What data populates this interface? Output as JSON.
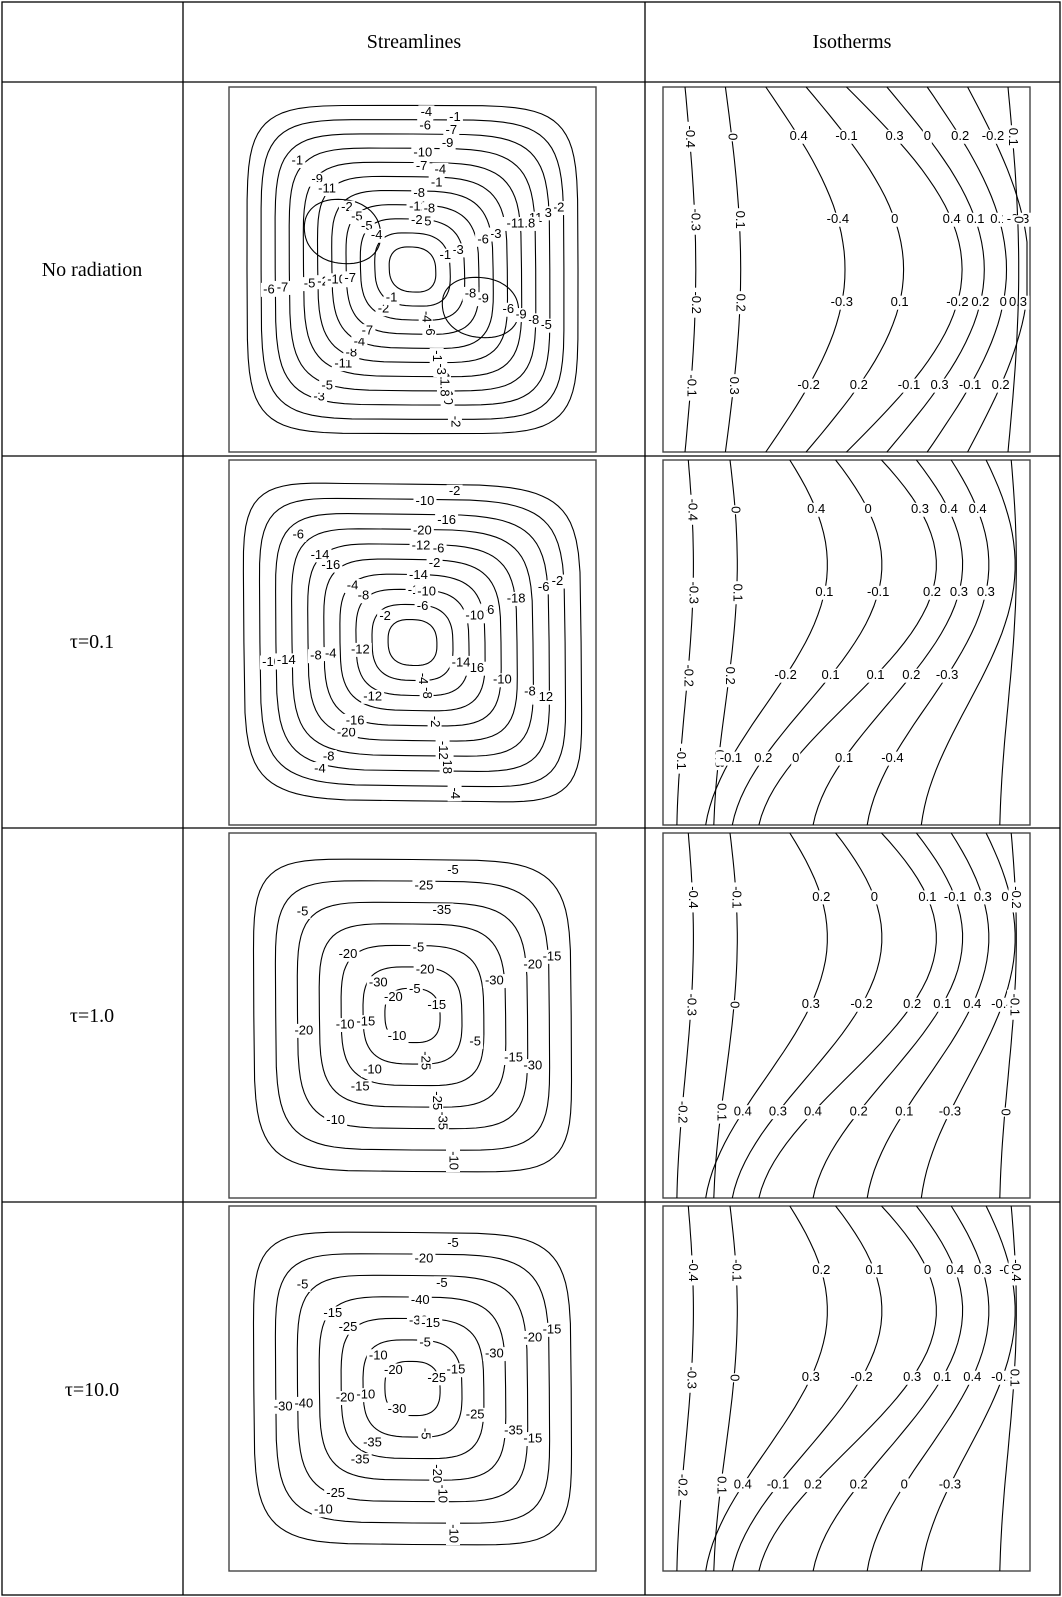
{
  "table": {
    "headers": [
      "",
      "Streamlines",
      "Isotherms"
    ],
    "rows": [
      {
        "label": "No radiation",
        "streamlines": {
          "contour_labels": [
            "-1",
            "-2",
            "-1",
            "-2",
            "-3",
            "-4",
            "-3",
            "-5",
            "-6",
            "-5",
            "-6",
            "-7",
            "-8",
            "-7",
            "-9",
            "-10",
            "-9",
            "-11",
            "-11.8",
            "-11",
            "-11.8",
            "-11",
            "-10",
            "-9",
            "-8",
            "-7",
            "-6",
            "-5",
            "-4",
            "-3",
            "-2",
            "-1",
            "-1",
            "-2",
            "-3",
            "-4",
            "-5",
            "-6",
            "-7",
            "-8",
            "-9",
            "-10",
            "-11",
            "-8",
            "-7",
            "-8",
            "-6",
            "-5",
            "-5",
            "-4",
            "-4",
            "-3",
            "-2",
            "-2",
            "-1",
            "-1"
          ],
          "min_label": "-11.8"
        },
        "isotherms": {
          "contour_labels": [
            "-0.4",
            "-0.3",
            "-0.2",
            "-0.1",
            "0",
            "0.1",
            "0.2",
            "0.3",
            "0.4",
            "-0.4",
            "-0.3",
            "-0.2",
            "-0.1",
            "0",
            "0.1",
            "0.2",
            "0.3",
            "0.4",
            "-0.2",
            "-0.1",
            "0",
            "0.1",
            "0.2",
            "0.3",
            "0.2",
            "0.1",
            "0",
            "-0.1",
            "-0.2",
            "-0.3",
            "0.3",
            "0.2",
            "0.1",
            "0"
          ],
          "range": [
            -0.4,
            0.4
          ]
        }
      },
      {
        "label": "τ=0.1",
        "streamlines": {
          "contour_labels": [
            "-2",
            "-4",
            "-6",
            "-2",
            "-4",
            "-6",
            "-8",
            "-10",
            "-12",
            "-10",
            "-8",
            "-14",
            "-16",
            "-18",
            "-14",
            "-12",
            "-16",
            "-18",
            "-20",
            "-20",
            "-16",
            "-12",
            "-10",
            "-8",
            "-6",
            "-4",
            "-2",
            "-2",
            "-4",
            "-6",
            "-8",
            "-10",
            "-12",
            "-14",
            "-16",
            "-18",
            "-14",
            "-12",
            "-10",
            "-8",
            "-6",
            "-4",
            "-2"
          ],
          "min_label": "-20"
        },
        "isotherms": {
          "contour_labels": [
            "-0.4",
            "-0.3",
            "-0.2",
            "-0.1",
            "0",
            "0.1",
            "0.2",
            "0.3",
            "0.4",
            "0.1",
            "-0.2",
            "-0.1",
            "0",
            "-0.1",
            "0.1",
            "0.2",
            "0.3",
            "0.2",
            "0.1",
            "0",
            "0.4",
            "0.3",
            "0.2",
            "0.1",
            "0.4",
            "0.3",
            "-0.3",
            "-0.4"
          ],
          "range": [
            -0.4,
            0.4
          ]
        }
      },
      {
        "label": "τ=1.0",
        "streamlines": {
          "contour_labels": [
            "-5",
            "-10",
            "-5",
            "-15",
            "-20",
            "-10",
            "-25",
            "-30",
            "-15",
            "-20",
            "-35",
            "-35",
            "-25",
            "-20",
            "-30",
            "-15",
            "-10",
            "-5",
            "-5",
            "-10",
            "-15",
            "-20",
            "-25",
            "-30",
            "-20",
            "-15",
            "-10",
            "-5"
          ],
          "min_label": "-35"
        },
        "isotherms": {
          "contour_labels": [
            "-0.4",
            "-0.3",
            "-0.2",
            "-0.1",
            "0",
            "0.1",
            "0.2",
            "0.3",
            "0.4",
            "0",
            "-0.2",
            "0.3",
            "0.1",
            "0.2",
            "0.4",
            "-0.1",
            "0.1",
            "0.2",
            "0.3",
            "0.4",
            "0.1",
            "0.3",
            "-0.4",
            "-0.3",
            "-0.2",
            "-0.1",
            "0"
          ],
          "range": [
            -0.4,
            0.4
          ]
        }
      },
      {
        "label": "τ=10.0",
        "streamlines": {
          "contour_labels": [
            "-5",
            "-10",
            "-5",
            "-15",
            "-10",
            "-20",
            "-25",
            "-20",
            "-15",
            "-30",
            "-35",
            "-40",
            "-5",
            "-10",
            "-15",
            "-20",
            "-25",
            "-30",
            "-35",
            "-40",
            "-35",
            "-30",
            "-25",
            "-20",
            "-15",
            "-10",
            "-5",
            "-5",
            "-10",
            "-15",
            "-20",
            "-25",
            "-30"
          ],
          "min_label": "-40"
        },
        "isotherms": {
          "contour_labels": [
            "-0.4",
            "-0.3",
            "-0.2",
            "-0.1",
            "0",
            "0.1",
            "0.2",
            "0.3",
            "0.4",
            "0.1",
            "-0.2",
            "-0.1",
            "0",
            "0.3",
            "0.2",
            "0.4",
            "0.1",
            "0.2",
            "0.3",
            "0.4",
            "0",
            "-0.1",
            "-0.2",
            "-0.3",
            "-0.4",
            "0.1"
          ],
          "range": [
            -0.4,
            0.4
          ]
        }
      }
    ]
  }
}
